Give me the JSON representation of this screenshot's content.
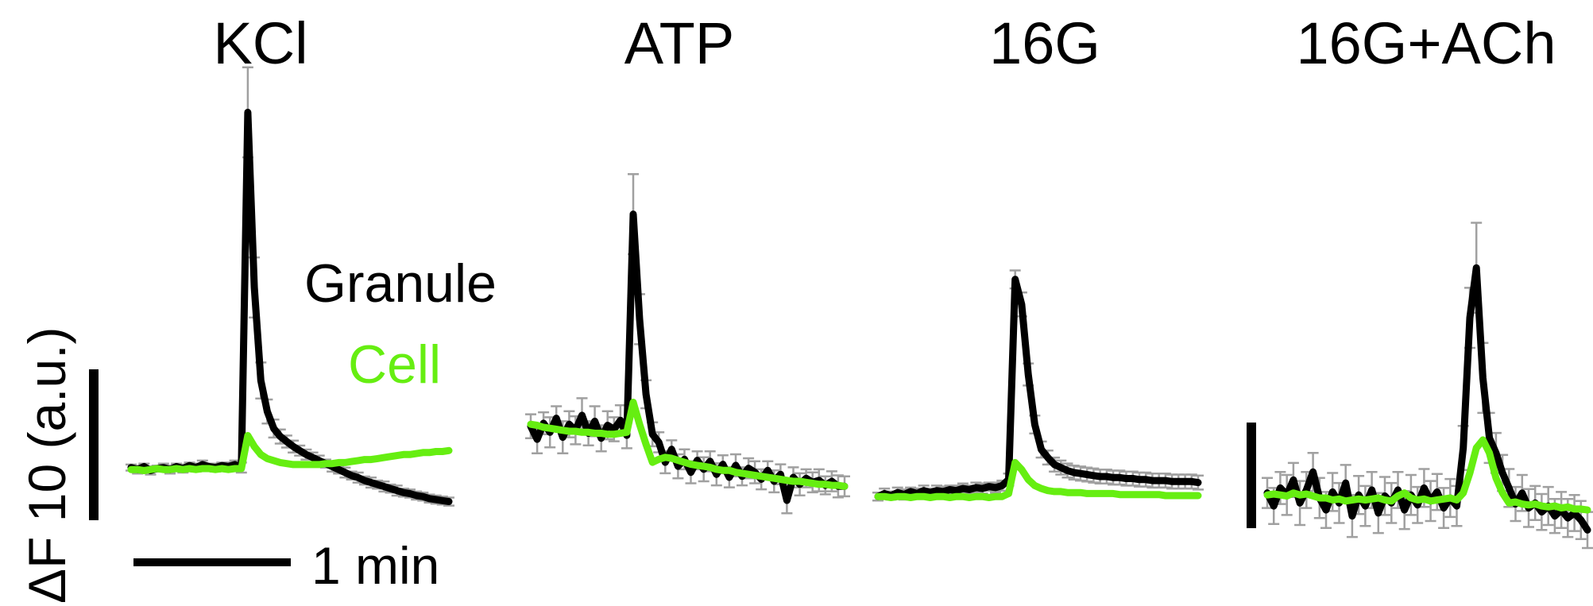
{
  "colors": {
    "granule": "#000000",
    "cell": "#66ee11",
    "error_bar": "#a0a0a0"
  },
  "legend": {
    "granule_label": "Granule",
    "cell_label": "Cell"
  },
  "scale_bars": {
    "time_label": "1 min",
    "amplitude_label": "ΔF 10 (a.u.)"
  },
  "chart_data": [
    {
      "type": "line",
      "title": "KCl",
      "time_points": 50,
      "stimulus_index": 17,
      "series": [
        {
          "name": "Granule",
          "values": [
            0.5,
            0.3,
            0.6,
            0.2,
            0.4,
            0.5,
            0.3,
            0.6,
            0.4,
            0.7,
            0.5,
            0.8,
            0.6,
            0.5,
            0.7,
            0.6,
            0.8,
            0.5,
            36.0,
            18.5,
            9.2,
            6.1,
            4.4,
            3.6,
            3.1,
            2.6,
            2.2,
            1.8,
            1.5,
            1.2,
            0.9,
            0.6,
            0.3,
            0.0,
            -0.3,
            -0.5,
            -0.8,
            -1.0,
            -1.2,
            -1.4,
            -1.6,
            -1.8,
            -2.0,
            -2.1,
            -2.3,
            -2.4,
            -2.6,
            -2.7,
            -2.8,
            -2.9
          ]
        },
        {
          "name": "Cell",
          "values": [
            0.3,
            0.3,
            0.2,
            0.3,
            0.4,
            0.3,
            0.3,
            0.4,
            0.3,
            0.4,
            0.3,
            0.4,
            0.4,
            0.3,
            0.4,
            0.3,
            0.4,
            0.4,
            3.7,
            2.6,
            1.8,
            1.4,
            1.2,
            1.0,
            0.9,
            0.8,
            0.8,
            0.8,
            0.8,
            0.8,
            0.9,
            0.9,
            1.0,
            1.0,
            1.1,
            1.2,
            1.3,
            1.3,
            1.4,
            1.5,
            1.6,
            1.7,
            1.8,
            1.8,
            1.9,
            2.0,
            2.0,
            2.1,
            2.1,
            2.2
          ]
        }
      ],
      "errors": [
        0.3,
        0.4,
        0.3,
        0.4,
        0.3,
        0.4,
        0.4,
        0.3,
        0.4,
        0.3,
        0.4,
        0.4,
        0.3,
        0.4,
        0.3,
        0.4,
        0.4,
        0.5,
        4.5,
        3.0,
        1.8,
        1.2,
        0.9,
        0.7,
        0.6,
        0.6,
        0.5,
        0.5,
        0.5,
        0.5,
        0.4,
        0.5,
        0.4,
        0.5,
        0.4,
        0.5,
        0.4,
        0.5,
        0.4,
        0.5,
        0.4,
        0.5,
        0.4,
        0.4,
        0.4,
        0.4,
        0.4,
        0.4,
        0.4,
        0.4
      ]
    },
    {
      "type": "line",
      "title": "ATP",
      "time_points": 50,
      "stimulus_index": 16,
      "series": [
        {
          "name": "Granule",
          "values": [
            2.8,
            1.5,
            3.1,
            2.2,
            3.6,
            1.7,
            3.0,
            2.4,
            3.9,
            2.1,
            3.3,
            1.6,
            2.9,
            2.5,
            3.4,
            1.9,
            24.0,
            13.5,
            6.0,
            2.0,
            1.2,
            -0.8,
            0.5,
            -1.2,
            -0.5,
            -1.8,
            -0.6,
            -1.5,
            -0.7,
            -2.0,
            -1.0,
            -2.3,
            -1.1,
            -2.2,
            -1.4,
            -1.8,
            -2.5,
            -1.6,
            -2.7,
            -2.0,
            -4.6,
            -2.3,
            -3.0,
            -2.4,
            -2.8,
            -2.6,
            -3.1,
            -2.7,
            -3.2,
            -3.2
          ]
        },
        {
          "name": "Cell",
          "values": [
            3.0,
            2.9,
            2.7,
            2.6,
            2.5,
            2.4,
            2.3,
            2.3,
            2.2,
            2.2,
            2.1,
            2.1,
            2.0,
            2.0,
            2.1,
            2.2,
            5.2,
            3.0,
            1.0,
            -0.8,
            -0.5,
            -0.3,
            -0.4,
            -0.6,
            -0.8,
            -1.0,
            -1.1,
            -1.2,
            -1.3,
            -1.5,
            -1.6,
            -1.6,
            -1.8,
            -1.9,
            -2.0,
            -2.1,
            -2.2,
            -2.3,
            -2.4,
            -2.5,
            -2.6,
            -2.7,
            -2.7,
            -2.8,
            -2.9,
            -3.0,
            -3.0,
            -3.1,
            -3.1,
            -3.2
          ]
        }
      ],
      "errors": [
        1.2,
        1.4,
        1.1,
        1.5,
        1.2,
        1.6,
        1.3,
        1.4,
        1.7,
        1.2,
        1.5,
        1.3,
        1.4,
        1.2,
        1.5,
        1.3,
        4.0,
        2.5,
        1.4,
        1.2,
        1.0,
        1.1,
        0.9,
        1.2,
        1.0,
        1.1,
        0.9,
        1.2,
        1.0,
        1.1,
        0.9,
        1.0,
        1.1,
        0.9,
        1.0,
        1.1,
        1.0,
        0.9,
        1.1,
        1.0,
        1.3,
        1.0,
        1.1,
        0.9,
        1.0,
        1.1,
        0.9,
        1.0,
        1.1,
        1.0
      ]
    },
    {
      "type": "line",
      "title": "16G",
      "time_points": 50,
      "stimulus_index": 20,
      "series": [
        {
          "name": "Granule",
          "values": [
            0.3,
            0.6,
            0.4,
            0.7,
            0.5,
            0.8,
            0.6,
            0.9,
            0.7,
            0.9,
            0.8,
            1.0,
            0.9,
            1.1,
            1.0,
            1.2,
            1.1,
            1.3,
            1.2,
            1.4,
            2.0,
            22.0,
            19.5,
            12.5,
            7.5,
            5.0,
            4.2,
            3.5,
            3.2,
            2.9,
            2.7,
            2.6,
            2.5,
            2.4,
            2.3,
            2.3,
            2.2,
            2.2,
            2.1,
            2.1,
            2.0,
            2.0,
            1.9,
            1.9,
            1.9,
            1.8,
            1.8,
            1.8,
            1.8,
            1.7
          ]
        },
        {
          "name": "Cell",
          "values": [
            0.3,
            0.3,
            0.2,
            0.3,
            0.3,
            0.2,
            0.3,
            0.3,
            0.2,
            0.3,
            0.3,
            0.2,
            0.3,
            0.3,
            0.2,
            0.3,
            0.3,
            0.2,
            0.3,
            0.3,
            0.6,
            3.7,
            3.0,
            2.0,
            1.4,
            1.1,
            0.9,
            0.8,
            0.8,
            0.7,
            0.7,
            0.7,
            0.6,
            0.6,
            0.6,
            0.6,
            0.6,
            0.5,
            0.5,
            0.5,
            0.5,
            0.5,
            0.5,
            0.5,
            0.4,
            0.4,
            0.4,
            0.4,
            0.4,
            0.4
          ]
        }
      ],
      "errors": [
        0.4,
        0.5,
        0.4,
        0.5,
        0.5,
        0.4,
        0.5,
        0.5,
        0.4,
        0.5,
        0.5,
        0.4,
        0.5,
        0.5,
        0.4,
        0.5,
        0.5,
        0.4,
        0.5,
        0.5,
        0.6,
        0.9,
        1.2,
        1.1,
        0.9,
        0.8,
        0.7,
        0.7,
        0.7,
        0.7,
        0.7,
        0.7,
        0.7,
        0.7,
        0.7,
        0.7,
        0.7,
        0.7,
        0.7,
        0.7,
        0.7,
        0.7,
        0.7,
        0.7,
        0.7,
        0.7,
        0.7,
        0.7,
        0.7,
        0.7
      ]
    },
    {
      "type": "line",
      "title": "16G+ACh",
      "time_points": 50,
      "stimulus_index": 30,
      "series": [
        {
          "name": "Granule",
          "values": [
            0.5,
            -0.8,
            1.0,
            0.3,
            1.8,
            -0.5,
            0.8,
            2.6,
            0.0,
            -1.2,
            0.6,
            -0.5,
            1.5,
            -1.8,
            0.3,
            -0.8,
            0.8,
            -1.5,
            0.2,
            -0.5,
            0.8,
            -1.2,
            0.3,
            -0.7,
            1.0,
            -0.3,
            0.6,
            -1.0,
            0.0,
            -0.8,
            5.0,
            18.0,
            23.0,
            12.0,
            6.0,
            4.5,
            2.5,
            1.0,
            -0.6,
            0.5,
            -1.0,
            -0.5,
            -1.4,
            -0.8,
            -1.8,
            -1.2,
            -2.0,
            -1.5,
            -2.2,
            -3.2
          ]
        },
        {
          "name": "Cell",
          "values": [
            0.3,
            0.4,
            0.3,
            0.2,
            0.5,
            0.3,
            0.4,
            0.2,
            0.0,
            0.0,
            -0.2,
            -0.1,
            -0.3,
            -0.2,
            -0.1,
            -0.2,
            -0.1,
            0.0,
            -0.2,
            -0.3,
            0.2,
            0.5,
            0.0,
            -0.2,
            -0.1,
            -0.3,
            -0.2,
            -0.1,
            0.0,
            -0.2,
            0.5,
            2.5,
            5.0,
            5.8,
            4.5,
            2.0,
            0.5,
            -0.5,
            -0.4,
            -0.6,
            -0.7,
            -0.6,
            -0.8,
            -0.9,
            -0.8,
            -1.0,
            -0.9,
            -1.1,
            -1.1,
            -1.2
          ]
        }
      ],
      "errors": [
        1.5,
        1.8,
        1.6,
        2.0,
        1.7,
        2.2,
        1.8,
        1.9,
        2.0,
        1.8,
        1.9,
        2.0,
        1.8,
        2.1,
        1.9,
        2.0,
        1.8,
        2.0,
        1.9,
        2.0,
        1.8,
        1.9,
        2.0,
        1.8,
        1.9,
        2.0,
        1.8,
        2.0,
        1.9,
        2.0,
        2.2,
        3.0,
        4.5,
        3.5,
        2.5,
        2.0,
        1.8,
        1.9,
        1.7,
        1.8,
        1.9,
        1.7,
        1.8,
        1.9,
        1.7,
        1.8,
        1.9,
        1.8,
        1.9,
        1.8
      ]
    }
  ]
}
